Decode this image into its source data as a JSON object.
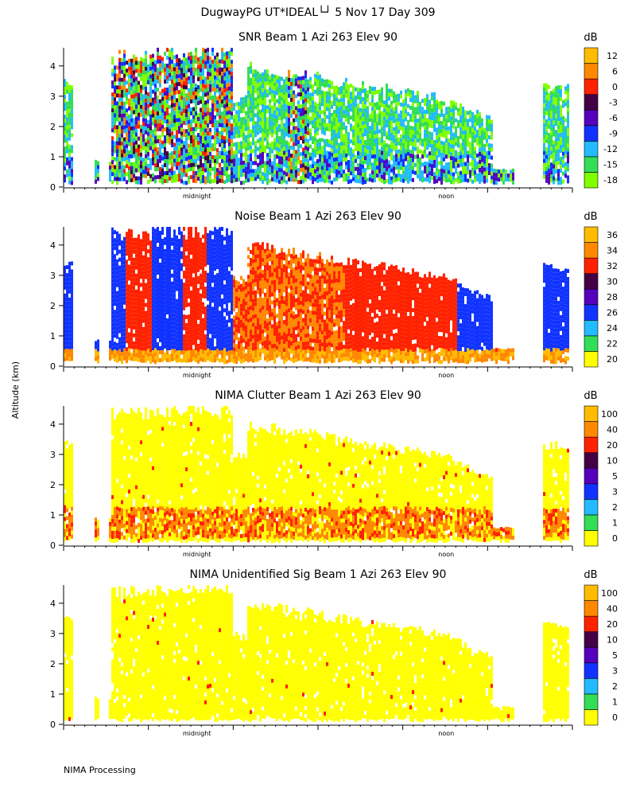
{
  "header": {
    "title": "DugwayPG UT*IDEAL└┘   5 Nov 17 Day 309",
    "ylabel": "Altitude (km)",
    "footer": "NIMA Processing"
  },
  "chart_data": [
    {
      "type": "heatmap",
      "title": "SNR Beam 1 Azi 263 Elev 90",
      "xlabel": "",
      "ylabel": "Altitude (km)",
      "x_ticks": [
        {
          "label": "midnight",
          "frac": 0.262
        },
        {
          "label": "noon",
          "frac": 0.752
        }
      ],
      "y_ticks": [
        0,
        1,
        2,
        3,
        4
      ],
      "ylim": [
        0,
        4.6
      ],
      "colorbar": {
        "unit": "dB",
        "levels": [
          "-18",
          "-15",
          "-12",
          "-9",
          "-6",
          "-3",
          "0",
          "6",
          "12"
        ],
        "colors": [
          "#80ff00",
          "#33dd55",
          "#22bbff",
          "#1133ff",
          "#5500bb",
          "#440044",
          "#ff2200",
          "#ff8800",
          "#ffbb00"
        ]
      }
    },
    {
      "type": "heatmap",
      "title": "Noise Beam 1 Azi 263 Elev 90",
      "xlabel": "",
      "ylabel": "Altitude (km)",
      "x_ticks": [
        {
          "label": "midnight",
          "frac": 0.262
        },
        {
          "label": "noon",
          "frac": 0.752
        }
      ],
      "y_ticks": [
        0,
        1,
        2,
        3,
        4
      ],
      "ylim": [
        0,
        4.6
      ],
      "colorbar": {
        "unit": "dB",
        "levels": [
          "20",
          "22",
          "24",
          "26",
          "28",
          "30",
          "32",
          "34",
          "36"
        ],
        "colors": [
          "#ffff00",
          "#33dd55",
          "#22bbff",
          "#1133ff",
          "#5500bb",
          "#440044",
          "#ff2200",
          "#ff8800",
          "#ffbb00"
        ]
      }
    },
    {
      "type": "heatmap",
      "title": "NIMA Clutter Beam 1 Azi 263 Elev 90",
      "xlabel": "",
      "ylabel": "Altitude (km)",
      "x_ticks": [
        {
          "label": "midnight",
          "frac": 0.262
        },
        {
          "label": "noon",
          "frac": 0.752
        }
      ],
      "y_ticks": [
        0,
        1,
        2,
        3,
        4
      ],
      "ylim": [
        0,
        4.6
      ],
      "colorbar": {
        "unit": "dB",
        "levels": [
          "0",
          "1",
          "2",
          "3",
          "5",
          "10",
          "20",
          "40",
          "100"
        ],
        "colors": [
          "#ffff00",
          "#33dd55",
          "#22bbff",
          "#1133ff",
          "#5500bb",
          "#440044",
          "#ff2200",
          "#ff8800",
          "#ffbb00"
        ]
      }
    },
    {
      "type": "heatmap",
      "title": "NIMA Unidentified Sig Beam 1 Azi 263 Elev 90",
      "xlabel": "",
      "ylabel": "Altitude (km)",
      "x_ticks": [
        {
          "label": "midnight",
          "frac": 0.262
        },
        {
          "label": "noon",
          "frac": 0.752
        }
      ],
      "y_ticks": [
        0,
        1,
        2,
        3,
        4
      ],
      "ylim": [
        0,
        4.6
      ],
      "colorbar": {
        "unit": "dB",
        "levels": [
          "0",
          "1",
          "2",
          "3",
          "5",
          "10",
          "20",
          "40",
          "100"
        ],
        "colors": [
          "#ffff00",
          "#33dd55",
          "#22bbff",
          "#1133ff",
          "#5500bb",
          "#440044",
          "#ff2200",
          "#ff8800",
          "#ffbb00"
        ]
      }
    }
  ]
}
